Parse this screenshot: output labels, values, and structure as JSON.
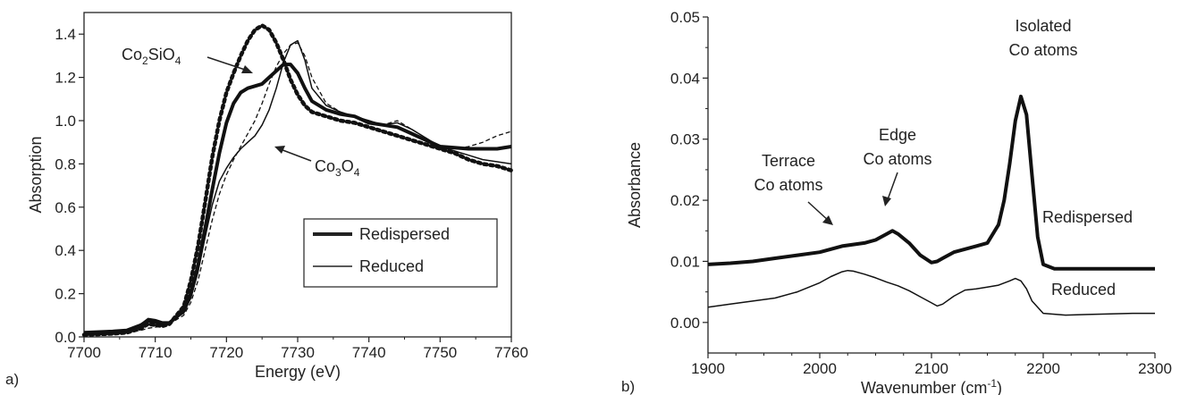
{
  "chart_data": [
    {
      "panel": "a)",
      "type": "line",
      "xlabel": "Energy (eV)",
      "ylabel": "Absorption",
      "xlim": [
        7700,
        7760
      ],
      "ylim": [
        0,
        1.5
      ],
      "xticks": [
        "7700",
        "7710",
        "7720",
        "7730",
        "7740",
        "7750",
        "7760"
      ],
      "yticks": [
        "0.0",
        "0.2",
        "0.4",
        "0.6",
        "0.8",
        "1.0",
        "1.2",
        "1.4"
      ],
      "legend": {
        "placement": "lower-right",
        "entries": [
          "Redispersed",
          "Reduced"
        ]
      },
      "series": [
        {
          "name": "Redispersed",
          "style": "thick-solid",
          "x": [
            7700,
            7704,
            7706,
            7708,
            7709,
            7710,
            7711,
            7712,
            7714,
            7715,
            7716,
            7717,
            7718,
            7719,
            7720,
            7721,
            7722,
            7723,
            7724,
            7725,
            7726,
            7727,
            7728,
            7729,
            7730,
            7731,
            7732,
            7734,
            7736,
            7738,
            7740,
            7742,
            7744,
            7746,
            7748,
            7750,
            7752,
            7754,
            7756,
            7758,
            7760
          ],
          "y": [
            0.02,
            0.025,
            0.03,
            0.055,
            0.075,
            0.07,
            0.06,
            0.065,
            0.12,
            0.2,
            0.33,
            0.5,
            0.68,
            0.85,
            0.99,
            1.08,
            1.13,
            1.15,
            1.16,
            1.17,
            1.2,
            1.23,
            1.26,
            1.26,
            1.22,
            1.15,
            1.09,
            1.05,
            1.03,
            1.02,
            0.99,
            0.98,
            0.97,
            0.94,
            0.91,
            0.88,
            0.875,
            0.87,
            0.87,
            0.87,
            0.88
          ]
        },
        {
          "name": "Reduced",
          "style": "thin-solid",
          "x": [
            7700,
            7704,
            7706,
            7708,
            7709,
            7710,
            7711,
            7712,
            7714,
            7715,
            7716,
            7717,
            7718,
            7719,
            7720,
            7721,
            7722,
            7723,
            7724,
            7725,
            7726,
            7727,
            7728,
            7729,
            7730,
            7731,
            7732,
            7734,
            7736,
            7738,
            7740,
            7742,
            7744,
            7746,
            7748,
            7750,
            7752,
            7754,
            7756,
            7758,
            7760
          ],
          "y": [
            0.02,
            0.025,
            0.03,
            0.06,
            0.085,
            0.08,
            0.07,
            0.07,
            0.11,
            0.18,
            0.3,
            0.46,
            0.61,
            0.72,
            0.78,
            0.83,
            0.87,
            0.9,
            0.93,
            0.98,
            1.05,
            1.15,
            1.27,
            1.35,
            1.37,
            1.28,
            1.15,
            1.07,
            1.04,
            1.02,
            1.0,
            0.98,
            0.99,
            0.96,
            0.92,
            0.88,
            0.86,
            0.84,
            0.82,
            0.81,
            0.8
          ]
        },
        {
          "name": "Co2SiO4",
          "style": "thick-dotted",
          "x": [
            7700,
            7704,
            7706,
            7708,
            7709,
            7710,
            7711,
            7712,
            7714,
            7715,
            7716,
            7717,
            7718,
            7719,
            7720,
            7721,
            7722,
            7723,
            7724,
            7725,
            7726,
            7727,
            7728,
            7729,
            7730,
            7731,
            7732,
            7734,
            7736,
            7738,
            7740,
            7742,
            7744,
            7746,
            7748,
            7750,
            7752,
            7754,
            7756,
            7758,
            7760
          ],
          "y": [
            0.01,
            0.015,
            0.02,
            0.04,
            0.06,
            0.055,
            0.05,
            0.06,
            0.14,
            0.26,
            0.42,
            0.62,
            0.83,
            1.0,
            1.13,
            1.22,
            1.3,
            1.37,
            1.42,
            1.44,
            1.42,
            1.36,
            1.28,
            1.19,
            1.12,
            1.07,
            1.04,
            1.02,
            1.0,
            0.99,
            0.97,
            0.95,
            0.93,
            0.91,
            0.89,
            0.87,
            0.85,
            0.82,
            0.8,
            0.79,
            0.77
          ]
        },
        {
          "name": "Co3O4",
          "style": "thin-dashed",
          "x": [
            7700,
            7704,
            7706,
            7708,
            7709,
            7710,
            7711,
            7712,
            7714,
            7715,
            7716,
            7717,
            7718,
            7719,
            7720,
            7721,
            7722,
            7723,
            7724,
            7725,
            7726,
            7727,
            7728,
            7729,
            7730,
            7731,
            7732,
            7734,
            7736,
            7738,
            7740,
            7742,
            7744,
            7746,
            7748,
            7750,
            7752,
            7754,
            7756,
            7758,
            7760
          ],
          "y": [
            0.01,
            0.015,
            0.02,
            0.03,
            0.04,
            0.045,
            0.05,
            0.06,
            0.1,
            0.16,
            0.26,
            0.4,
            0.54,
            0.66,
            0.75,
            0.82,
            0.88,
            0.94,
            1.0,
            1.08,
            1.17,
            1.25,
            1.31,
            1.35,
            1.36,
            1.3,
            1.2,
            1.08,
            1.04,
            1.02,
            1.0,
            0.98,
            1.0,
            0.96,
            0.92,
            0.88,
            0.87,
            0.88,
            0.9,
            0.93,
            0.95
          ]
        }
      ],
      "annotations": [
        {
          "text": "Co",
          "sub": "2",
          "text2": "SiO",
          "sub2": "4",
          "target": "Co2SiO4"
        },
        {
          "text": "Co",
          "sub": "3",
          "text2": "O",
          "sub2": "4",
          "target": "Co3O4"
        }
      ]
    },
    {
      "panel": "b)",
      "type": "line",
      "xlabel": "Wavenumber (cm",
      "xlabel_sup": "-1",
      "xlabel_end": ")",
      "ylabel": "Absorbance",
      "xlim": [
        1900,
        2300
      ],
      "ylim": [
        -0.005,
        0.05
      ],
      "xticks": [
        "1900",
        "2000",
        "2100",
        "2200",
        "2300"
      ],
      "yticks": [
        "0.00",
        "0.01",
        "0.02",
        "0.03",
        "0.04",
        "0.05"
      ],
      "series": [
        {
          "name": "Redispersed",
          "style": "thick-solid",
          "x": [
            1900,
            1920,
            1940,
            1960,
            1980,
            2000,
            2020,
            2040,
            2050,
            2060,
            2065,
            2070,
            2080,
            2090,
            2100,
            2105,
            2110,
            2120,
            2130,
            2140,
            2150,
            2160,
            2165,
            2170,
            2175,
            2180,
            2185,
            2190,
            2195,
            2200,
            2210,
            2220,
            2240,
            2260,
            2280,
            2300
          ],
          "y": [
            0.0095,
            0.0097,
            0.01,
            0.0105,
            0.011,
            0.0115,
            0.0125,
            0.013,
            0.0135,
            0.0145,
            0.015,
            0.0145,
            0.013,
            0.011,
            0.0098,
            0.01,
            0.0105,
            0.0115,
            0.012,
            0.0125,
            0.013,
            0.016,
            0.02,
            0.026,
            0.033,
            0.037,
            0.034,
            0.024,
            0.014,
            0.0095,
            0.0088,
            0.0088,
            0.0088,
            0.0088,
            0.0088,
            0.0088
          ]
        },
        {
          "name": "Reduced",
          "style": "thin-solid",
          "x": [
            1900,
            1920,
            1940,
            1960,
            1980,
            2000,
            2010,
            2020,
            2025,
            2030,
            2040,
            2050,
            2060,
            2070,
            2080,
            2090,
            2100,
            2105,
            2110,
            2120,
            2130,
            2140,
            2150,
            2160,
            2170,
            2175,
            2180,
            2185,
            2190,
            2200,
            2220,
            2240,
            2260,
            2280,
            2300
          ],
          "y": [
            0.0025,
            0.003,
            0.0035,
            0.004,
            0.005,
            0.0065,
            0.0075,
            0.0083,
            0.0085,
            0.0084,
            0.0079,
            0.0073,
            0.0066,
            0.006,
            0.0052,
            0.0042,
            0.0032,
            0.0027,
            0.003,
            0.0043,
            0.0053,
            0.0055,
            0.0058,
            0.0061,
            0.0068,
            0.0072,
            0.0068,
            0.0055,
            0.0035,
            0.0015,
            0.0012,
            0.0013,
            0.0014,
            0.0015,
            0.0015
          ]
        }
      ],
      "annotations": [
        {
          "line1": "Isolated",
          "line2": "Co atoms"
        },
        {
          "line1": "Edge",
          "line2": "Co atoms"
        },
        {
          "line1": "Terrace",
          "line2": "Co atoms"
        },
        {
          "line1": "Redispersed"
        },
        {
          "line1": "Reduced"
        }
      ]
    }
  ]
}
